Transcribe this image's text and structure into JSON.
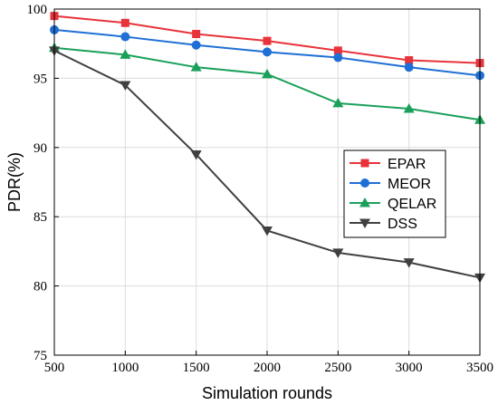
{
  "chart_data": {
    "type": "line",
    "xlabel": "Simulation rounds",
    "ylabel": "PDR(%)",
    "x": [
      500,
      1000,
      1500,
      2000,
      2500,
      3000,
      3500
    ],
    "xlim": [
      500,
      3500
    ],
    "ylim": [
      75,
      100
    ],
    "xticks": [
      500,
      1000,
      1500,
      2000,
      2500,
      3000,
      3500
    ],
    "yticks": [
      75,
      80,
      85,
      90,
      95,
      100
    ],
    "grid": true,
    "legend_position": "center-right",
    "series": [
      {
        "name": "EPAR",
        "color": "#e8333a",
        "marker": "square",
        "values": [
          99.5,
          99.0,
          98.2,
          97.7,
          97.0,
          96.3,
          96.1
        ]
      },
      {
        "name": "MEOR",
        "color": "#1f6fd6",
        "marker": "circle",
        "values": [
          98.5,
          98.0,
          97.4,
          96.9,
          96.5,
          95.8,
          95.2
        ]
      },
      {
        "name": "QELAR",
        "color": "#1aa05a",
        "marker": "triangle-up",
        "values": [
          97.2,
          96.7,
          95.8,
          95.3,
          93.2,
          92.8,
          92.0
        ]
      },
      {
        "name": "DSS",
        "color": "#404040",
        "marker": "triangle-down",
        "values": [
          97.0,
          94.5,
          89.5,
          84.0,
          82.4,
          81.7,
          80.6
        ]
      }
    ]
  }
}
